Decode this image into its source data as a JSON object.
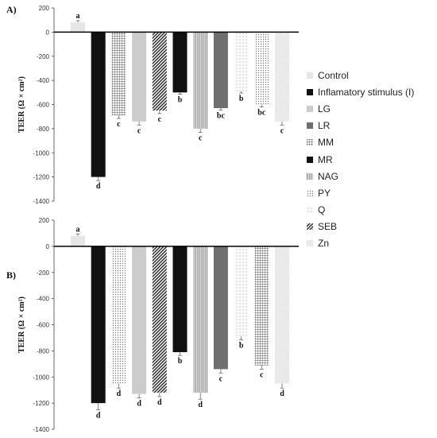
{
  "patterns": {
    "solid-light": "#e6e6e6",
    "solid-black": "#111111",
    "solid-lightgray": "#cccccc",
    "solid-darkgray": "#6f6f6f",
    "grid": "grid",
    "vstripe": "vstripe",
    "dots-fine": "dots-fine",
    "dots-sparse": "dots-sparse",
    "diag": "diag",
    "dots-light": "dots-light"
  },
  "legend": {
    "items": [
      {
        "label": "Control",
        "pattern": "solid-light"
      },
      {
        "label": "Inflamatory stimulus  (I)",
        "pattern": "solid-black"
      },
      {
        "label": "LG",
        "pattern": "solid-lightgray"
      },
      {
        "label": "LR",
        "pattern": "solid-darkgray"
      },
      {
        "label": "MM",
        "pattern": "grid"
      },
      {
        "label": "MR",
        "pattern": "solid-black"
      },
      {
        "label": "NAG",
        "pattern": "vstripe"
      },
      {
        "label": "PY",
        "pattern": "dots-fine"
      },
      {
        "label": "Q",
        "pattern": "dots-sparse"
      },
      {
        "label": "SEB",
        "pattern": "diag"
      },
      {
        "label": "Zn",
        "pattern": "dots-light"
      }
    ]
  },
  "chart_data": [
    {
      "type": "bar",
      "panel_label": "A)",
      "ylabel": "TEER (Ω × cm²)",
      "ylim": [
        -1400,
        200
      ],
      "yticks": [
        200,
        0,
        -200,
        -400,
        -600,
        -800,
        -1000,
        -1200,
        -1400
      ],
      "categories": [
        "Control",
        "Inflamatory stimulus  (I)",
        "MM",
        "LG",
        "SEB",
        "MR",
        "NAG",
        "LR",
        "Q",
        "PY",
        "Zn"
      ],
      "patterns": [
        "solid-light",
        "solid-black",
        "grid",
        "solid-lightgray",
        "diag",
        "solid-black",
        "vstripe",
        "solid-darkgray",
        "dots-sparse",
        "dots-fine",
        "dots-light"
      ],
      "values": [
        80,
        -1200,
        -690,
        -740,
        -650,
        -500,
        -800,
        -630,
        -490,
        -600,
        -740
      ],
      "errors": [
        15,
        30,
        25,
        30,
        25,
        15,
        30,
        15,
        15,
        20,
        30
      ],
      "letters": [
        "a",
        "d",
        "c",
        "c",
        "c",
        "b",
        "c",
        "bc",
        "b",
        "bc",
        "c"
      ]
    },
    {
      "type": "bar",
      "panel_label": "B)",
      "ylabel": "TEER (Ω × cm²)",
      "ylim": [
        -1400,
        200
      ],
      "yticks": [
        200,
        0,
        -200,
        -400,
        -600,
        -800,
        -1000,
        -1200,
        -1400
      ],
      "categories": [
        "Control",
        "Inflamatory stimulus  (I)",
        "PY",
        "LG",
        "SEB",
        "MR",
        "NAG",
        "LR",
        "Q",
        "MM",
        "Zn"
      ],
      "patterns": [
        "solid-light",
        "solid-black",
        "dots-fine",
        "solid-lightgray",
        "diag",
        "solid-black",
        "vstripe",
        "solid-darkgray",
        "dots-sparse",
        "grid",
        "dots-light"
      ],
      "values": [
        80,
        -1200,
        -1050,
        -1130,
        -1120,
        -810,
        -1120,
        -940,
        -690,
        -910,
        -1050
      ],
      "errors": [
        15,
        50,
        35,
        30,
        30,
        25,
        50,
        30,
        25,
        30,
        35
      ],
      "letters": [
        "a",
        "d",
        "d",
        "d",
        "d",
        "b",
        "d",
        "c",
        "b",
        "c",
        "d"
      ]
    }
  ]
}
